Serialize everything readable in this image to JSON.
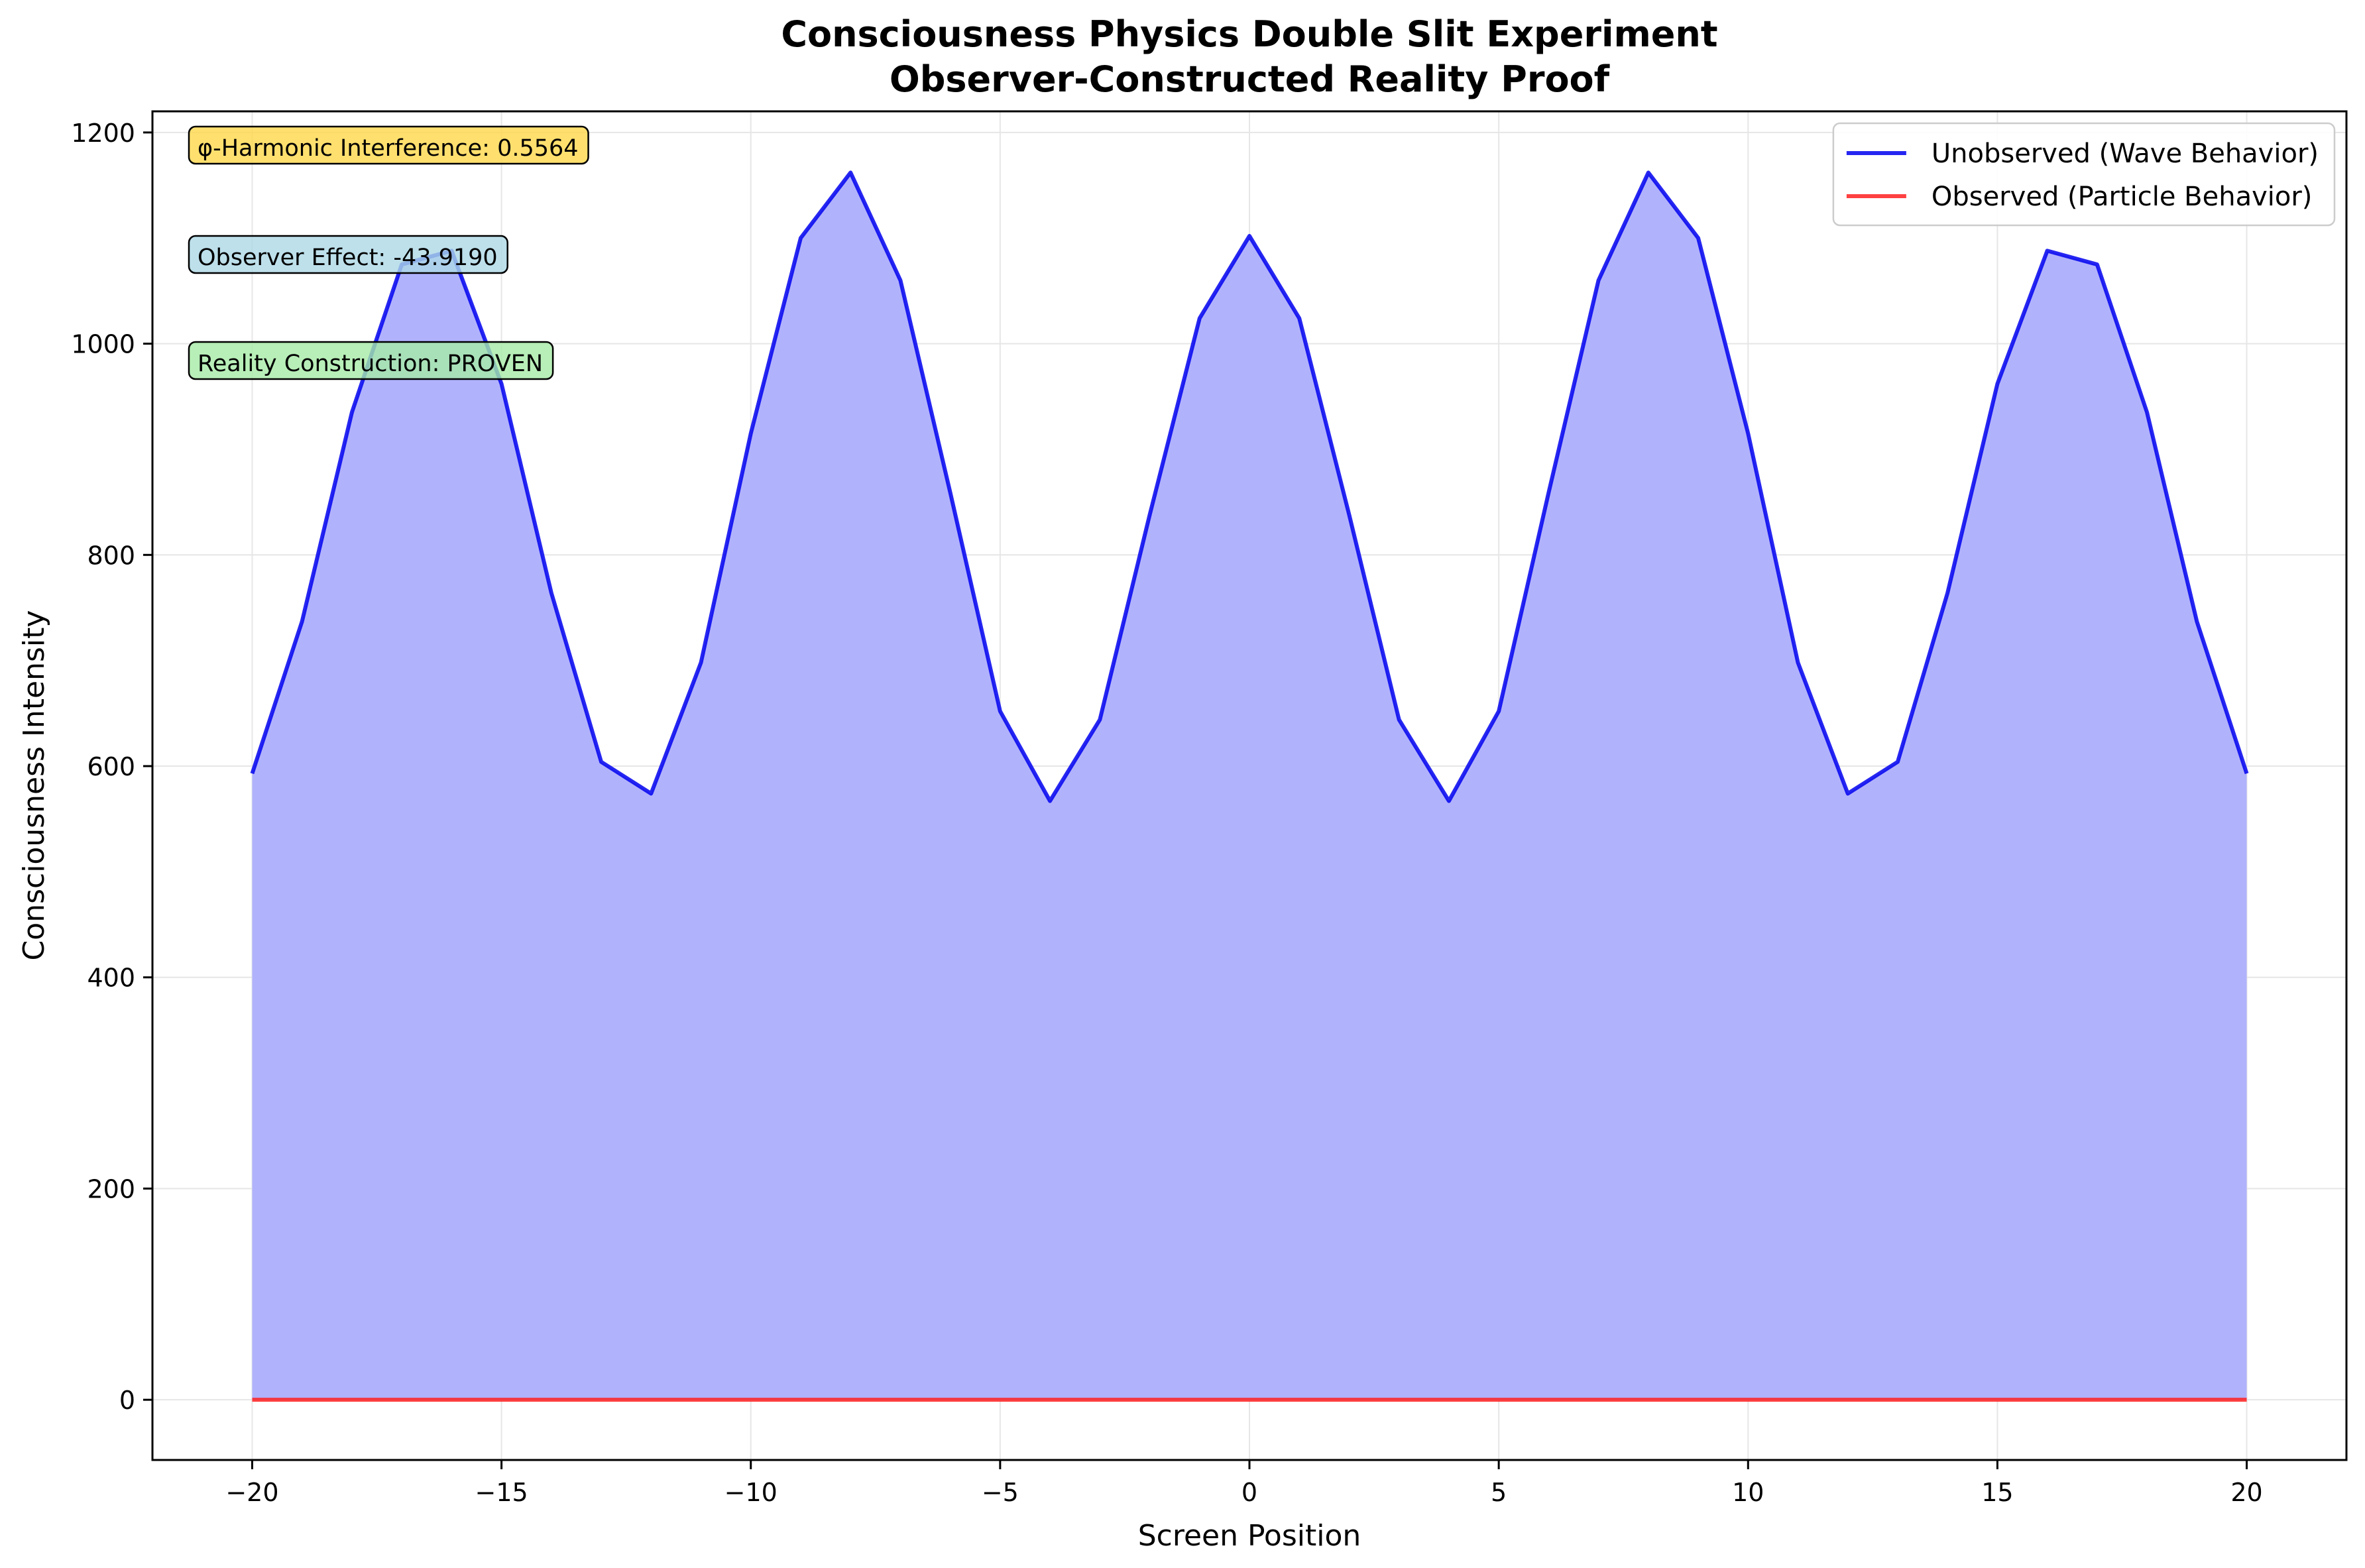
{
  "chart_data": {
    "type": "line",
    "title": "Consciousness Physics Double Slit Experiment",
    "subtitle": "Observer-Constructed Reality Proof",
    "xlabel": "Screen Position",
    "ylabel": "Consciousness Intensity",
    "xlim": [
      -22,
      22
    ],
    "ylim": [
      -57,
      1220
    ],
    "xticks": [
      -20,
      -15,
      -10,
      -5,
      0,
      5,
      10,
      15,
      20
    ],
    "xtick_labels": [
      "−20",
      "−15",
      "−10",
      "−5",
      "0",
      "5",
      "10",
      "15",
      "20"
    ],
    "yticks": [
      0,
      200,
      400,
      600,
      800,
      1000,
      1200
    ],
    "ytick_labels": [
      "0",
      "200",
      "400",
      "600",
      "800",
      "1000",
      "1200"
    ],
    "grid": true,
    "legend_position": "top-right",
    "x": [
      -20,
      -19,
      -18,
      -17,
      -16,
      -15,
      -14,
      -13,
      -12,
      -11,
      -10,
      -9,
      -8,
      -7,
      -6,
      -5,
      -4,
      -3,
      -2,
      -1,
      0,
      1,
      2,
      3,
      4,
      5,
      6,
      7,
      8,
      9,
      10,
      11,
      12,
      13,
      14,
      15,
      16,
      17,
      18,
      19,
      20
    ],
    "series": [
      {
        "name": "Unobserved (Wave Behavior)",
        "color": "#0000ee",
        "fill_color": "#b1b2fc",
        "filled": true,
        "values": [
          593,
          737,
          935,
          1075,
          1088,
          962,
          764,
          604,
          574,
          698,
          915,
          1100,
          1162,
          1060,
          859,
          652,
          567,
          644,
          838,
          1024,
          1102,
          1024,
          838,
          644,
          567,
          652,
          859,
          1060,
          1162,
          1100,
          915,
          698,
          574,
          604,
          764,
          962,
          1088,
          1075,
          935,
          737,
          593
        ]
      },
      {
        "name": "Observed (Particle Behavior)",
        "color": "#ff2020",
        "filled": false,
        "values": [
          0,
          0,
          0,
          0,
          0,
          0,
          0,
          0,
          0,
          0,
          0,
          0,
          0,
          0,
          0,
          0,
          0,
          0,
          0,
          0,
          0,
          0,
          0,
          0,
          0,
          0,
          0,
          0,
          0,
          0,
          0,
          0,
          0,
          0,
          0,
          0,
          0,
          0,
          0,
          0,
          0
        ]
      }
    ],
    "annotations": [
      {
        "text": "φ-Harmonic Interference: 0.5564",
        "bg": "#ffd84a"
      },
      {
        "text": "Observer Effect: -43.9190",
        "bg": "#add8e6"
      },
      {
        "text": "Reality Construction: PROVEN",
        "bg": "#a6eba6"
      }
    ]
  }
}
